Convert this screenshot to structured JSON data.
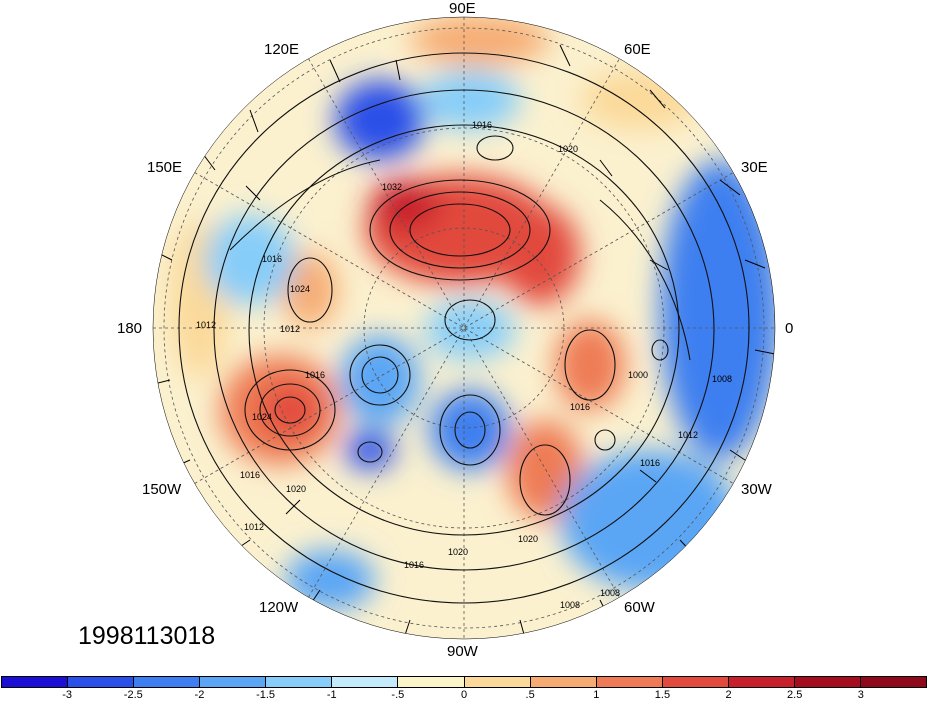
{
  "map": {
    "longitude_labels": [
      {
        "id": "90e",
        "text": "90E"
      },
      {
        "id": "60e",
        "text": "60E"
      },
      {
        "id": "30e",
        "text": "30E"
      },
      {
        "id": "0",
        "text": "0"
      },
      {
        "id": "30w",
        "text": "30W"
      },
      {
        "id": "60w",
        "text": "60W"
      },
      {
        "id": "90w",
        "text": "90W"
      },
      {
        "id": "120w",
        "text": "120W"
      },
      {
        "id": "150w",
        "text": "150W"
      },
      {
        "id": "180",
        "text": "180"
      },
      {
        "id": "150e",
        "text": "150E"
      },
      {
        "id": "120e",
        "text": "120E"
      }
    ],
    "contour_labels": [
      "1016",
      "1020",
      "1032",
      "1016",
      "1024",
      "1012",
      "1012",
      "1016",
      "1024",
      "1016",
      "1020",
      "1012",
      "1020",
      "1016",
      "1020",
      "1000",
      "1016",
      "1008",
      "1012",
      "1016",
      "1008",
      "1008"
    ],
    "projection": "north polar stereographic",
    "field": "pressure contours with anomaly shading and wind barbs"
  },
  "timestamp": "1998113018",
  "colorbar": {
    "colors": [
      "#1b0fd6",
      "#2950e8",
      "#3d7ff0",
      "#5aa6f5",
      "#86cdf9",
      "#c3ebfb",
      "#fbf4c8",
      "#fbd99a",
      "#f6ab72",
      "#ee7b55",
      "#e24a3e",
      "#c81f2c",
      "#a40d1e"
    ],
    "labels": [
      "-3",
      "-2.5",
      "-2",
      "-1.5",
      "-1",
      "-.5",
      "0",
      ".5",
      "1",
      "1.5",
      "2",
      "2.5",
      "3"
    ]
  }
}
